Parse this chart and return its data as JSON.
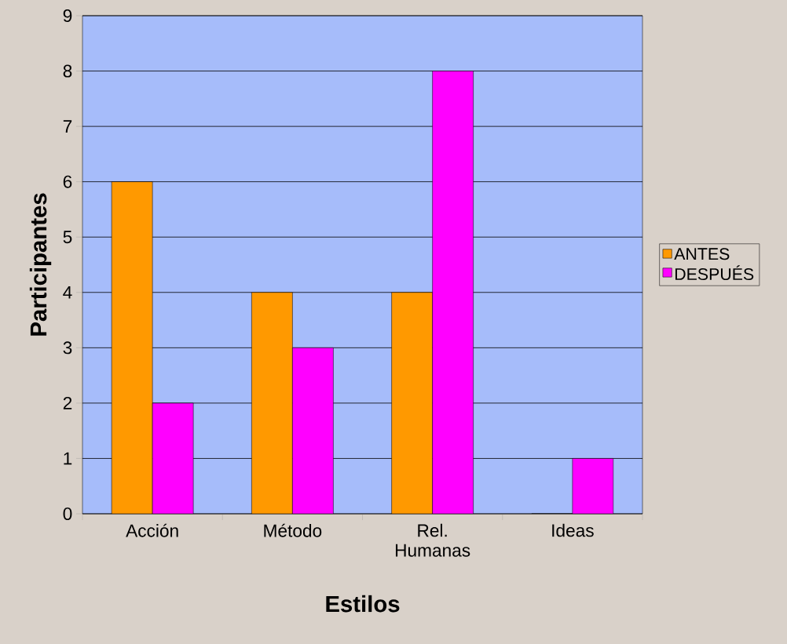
{
  "chart_data": {
    "type": "bar",
    "xlabel": "Estilos",
    "ylabel": "Participantes",
    "categories": [
      "Acción",
      "Método",
      "Rel. Humanas",
      "Ideas"
    ],
    "series": [
      {
        "name": "ANTES",
        "color": "#ff9900",
        "values": [
          6,
          4,
          4,
          0
        ]
      },
      {
        "name": "DESPUÉS",
        "color": "#ff00ff",
        "values": [
          2,
          3,
          8,
          1
        ]
      }
    ],
    "ylim": [
      0,
      9
    ],
    "yticks": [
      0,
      1,
      2,
      3,
      4,
      5,
      6,
      7,
      8,
      9
    ],
    "grid": "y",
    "legend": "right"
  }
}
